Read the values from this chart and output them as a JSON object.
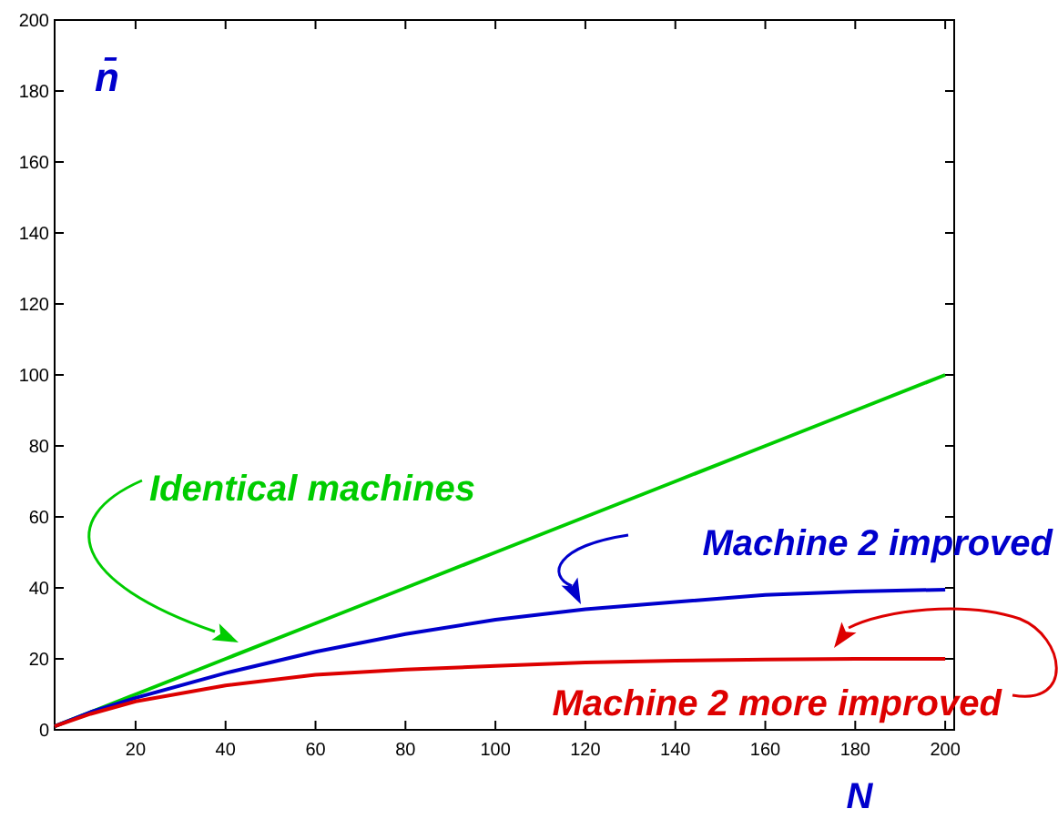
{
  "chart_data": {
    "type": "line",
    "xlabel": "N",
    "ylabel": "n̄",
    "x": [
      2,
      10,
      20,
      40,
      60,
      80,
      100,
      120,
      140,
      160,
      180,
      200
    ],
    "xlim": [
      2,
      202
    ],
    "ylim": [
      0,
      200
    ],
    "xticks": [
      20,
      40,
      60,
      80,
      100,
      120,
      140,
      160,
      180,
      200
    ],
    "yticks": [
      0,
      20,
      40,
      60,
      80,
      100,
      120,
      140,
      160,
      180,
      200
    ],
    "grid": false,
    "marker": "none",
    "line_style": "solid",
    "series": [
      {
        "color": "#00cc00",
        "values": [
          1,
          5,
          10,
          20,
          30,
          40,
          50,
          60,
          70,
          80,
          90,
          100
        ]
      },
      {
        "color": "#0000cc",
        "values": [
          1,
          5,
          9,
          16,
          22,
          27,
          31,
          34,
          36,
          38,
          39,
          39.5
        ]
      },
      {
        "color": "#dd0000",
        "values": [
          1,
          4.5,
          8,
          12.5,
          15.5,
          17,
          18,
          19,
          19.5,
          19.8,
          20,
          20
        ]
      }
    ],
    "annotations": [
      "Identical machines",
      "Machine 2 improved",
      "Machine 2 more improved"
    ]
  }
}
